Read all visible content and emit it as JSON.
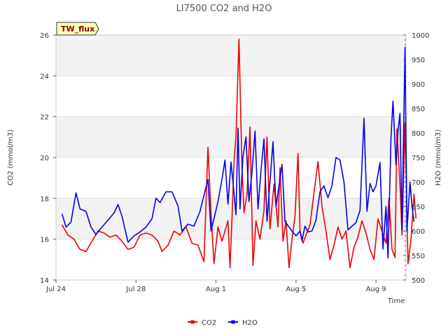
{
  "chart_data": {
    "type": "line",
    "title": "LI7500 CO2 and H2O",
    "site_badge": "TW_flux",
    "xlabel": "Time",
    "ylabel_left": "CO2 (mmol/m3)",
    "ylabel_right": "H2O (mmol/m3)",
    "x_range_days": [
      0,
      17.5
    ],
    "x_ticks": [
      {
        "day": 0,
        "label": "Jul 24"
      },
      {
        "day": 4,
        "label": "Jul 28"
      },
      {
        "day": 8,
        "label": "Aug 1"
      },
      {
        "day": 12,
        "label": "Aug 5"
      },
      {
        "day": 16,
        "label": "Aug 9"
      }
    ],
    "ylim_left": [
      14,
      26
    ],
    "yticks_left": [
      14,
      16,
      18,
      20,
      22,
      24,
      26
    ],
    "ylim_right": [
      500,
      1000
    ],
    "yticks_right": [
      500,
      550,
      600,
      650,
      700,
      750,
      800,
      850,
      900,
      950,
      1000
    ],
    "grid_bands_left": [
      [
        16,
        18
      ],
      [
        20,
        22
      ],
      [
        24,
        26
      ]
    ],
    "series": [
      {
        "name": "CO2",
        "axis": "left",
        "color": "#ee0000",
        "points": [
          [
            0.3,
            16.7
          ],
          [
            0.6,
            16.2
          ],
          [
            0.9,
            16.0
          ],
          [
            1.2,
            15.5
          ],
          [
            1.5,
            15.4
          ],
          [
            1.8,
            15.9
          ],
          [
            2.1,
            16.4
          ],
          [
            2.4,
            16.3
          ],
          [
            2.7,
            16.1
          ],
          [
            3.0,
            16.2
          ],
          [
            3.3,
            15.9
          ],
          [
            3.6,
            15.5
          ],
          [
            3.9,
            15.6
          ],
          [
            4.2,
            16.2
          ],
          [
            4.5,
            16.3
          ],
          [
            4.8,
            16.2
          ],
          [
            5.1,
            15.9
          ],
          [
            5.3,
            15.4
          ],
          [
            5.6,
            15.7
          ],
          [
            5.9,
            16.4
          ],
          [
            6.2,
            16.2
          ],
          [
            6.5,
            16.6
          ],
          [
            6.8,
            15.8
          ],
          [
            7.1,
            15.7
          ],
          [
            7.4,
            14.9
          ],
          [
            7.6,
            20.5
          ],
          [
            7.75,
            17.3
          ],
          [
            7.9,
            14.8
          ],
          [
            8.1,
            16.6
          ],
          [
            8.3,
            15.9
          ],
          [
            8.6,
            16.9
          ],
          [
            8.7,
            14.6
          ],
          [
            8.8,
            17.0
          ],
          [
            8.9,
            19.8
          ],
          [
            9.0,
            21.0
          ],
          [
            9.15,
            25.8
          ],
          [
            9.3,
            19.5
          ],
          [
            9.4,
            17.3
          ],
          [
            9.55,
            18.2
          ],
          [
            9.7,
            21.5
          ],
          [
            9.85,
            14.7
          ],
          [
            10.0,
            16.9
          ],
          [
            10.2,
            16.0
          ],
          [
            10.4,
            17.4
          ],
          [
            10.55,
            21.0
          ],
          [
            10.7,
            16.5
          ],
          [
            10.9,
            18.7
          ],
          [
            11.1,
            16.6
          ],
          [
            11.2,
            19.5
          ],
          [
            11.35,
            15.9
          ],
          [
            11.5,
            16.9
          ],
          [
            11.65,
            14.6
          ],
          [
            11.8,
            16.0
          ],
          [
            11.95,
            17.1
          ],
          [
            12.1,
            20.2
          ],
          [
            12.2,
            16.4
          ],
          [
            12.35,
            15.8
          ],
          [
            12.5,
            16.2
          ],
          [
            12.7,
            16.7
          ],
          [
            12.9,
            18.3
          ],
          [
            13.1,
            19.8
          ],
          [
            13.3,
            17.6
          ],
          [
            13.5,
            16.4
          ],
          [
            13.7,
            15.0
          ],
          [
            13.9,
            15.7
          ],
          [
            14.1,
            16.6
          ],
          [
            14.3,
            16.0
          ],
          [
            14.5,
            16.4
          ],
          [
            14.7,
            14.6
          ],
          [
            14.9,
            15.6
          ],
          [
            15.1,
            16.1
          ],
          [
            15.3,
            16.9
          ],
          [
            15.5,
            16.3
          ],
          [
            15.7,
            15.5
          ],
          [
            15.9,
            15.0
          ],
          [
            16.1,
            17.0
          ],
          [
            16.3,
            16.4
          ],
          [
            16.5,
            15.8
          ],
          [
            16.65,
            18.0
          ],
          [
            16.8,
            15.5
          ],
          [
            16.95,
            15.1
          ],
          [
            17.05,
            21.4
          ],
          [
            17.2,
            18.6
          ],
          [
            17.3,
            16.2
          ],
          [
            17.45,
            21.7
          ],
          [
            17.6,
            14.8
          ],
          [
            17.75,
            16.0
          ],
          [
            17.9,
            18.2
          ],
          [
            18.0,
            17.0
          ]
        ]
      },
      {
        "name": "H2O",
        "axis": "right",
        "color": "#0000ee",
        "points": [
          [
            0.3,
            635
          ],
          [
            0.5,
            608
          ],
          [
            0.75,
            618
          ],
          [
            1.0,
            678
          ],
          [
            1.2,
            645
          ],
          [
            1.5,
            640
          ],
          [
            1.75,
            608
          ],
          [
            2.0,
            593
          ],
          [
            2.3,
            608
          ],
          [
            2.6,
            622
          ],
          [
            2.9,
            637
          ],
          [
            3.1,
            654
          ],
          [
            3.3,
            630
          ],
          [
            3.6,
            577
          ],
          [
            3.9,
            590
          ],
          [
            4.2,
            598
          ],
          [
            4.5,
            608
          ],
          [
            4.8,
            625
          ],
          [
            5.0,
            667
          ],
          [
            5.2,
            658
          ],
          [
            5.5,
            680
          ],
          [
            5.8,
            680
          ],
          [
            6.1,
            651
          ],
          [
            6.3,
            600
          ],
          [
            6.6,
            614
          ],
          [
            6.9,
            610
          ],
          [
            7.2,
            640
          ],
          [
            7.4,
            673
          ],
          [
            7.6,
            705
          ],
          [
            7.75,
            600
          ],
          [
            7.9,
            625
          ],
          [
            8.1,
            660
          ],
          [
            8.3,
            705
          ],
          [
            8.45,
            745
          ],
          [
            8.6,
            655
          ],
          [
            8.75,
            741
          ],
          [
            8.9,
            678
          ],
          [
            9.0,
            633
          ],
          [
            9.1,
            810
          ],
          [
            9.2,
            645
          ],
          [
            9.35,
            752
          ],
          [
            9.5,
            792
          ],
          [
            9.65,
            660
          ],
          [
            9.8,
            720
          ],
          [
            9.95,
            804
          ],
          [
            10.1,
            645
          ],
          [
            10.25,
            725
          ],
          [
            10.4,
            788
          ],
          [
            10.55,
            620
          ],
          [
            10.7,
            701
          ],
          [
            10.85,
            782
          ],
          [
            11.0,
            650
          ],
          [
            11.15,
            692
          ],
          [
            11.3,
            736
          ],
          [
            11.45,
            620
          ],
          [
            11.6,
            611
          ],
          [
            11.8,
            600
          ],
          [
            12.0,
            590
          ],
          [
            12.2,
            600
          ],
          [
            12.3,
            580
          ],
          [
            12.45,
            610
          ],
          [
            12.6,
            598
          ],
          [
            12.8,
            600
          ],
          [
            13.0,
            622
          ],
          [
            13.2,
            680
          ],
          [
            13.4,
            692
          ],
          [
            13.6,
            668
          ],
          [
            13.8,
            693
          ],
          [
            14.0,
            750
          ],
          [
            14.2,
            745
          ],
          [
            14.4,
            700
          ],
          [
            14.6,
            602
          ],
          [
            14.8,
            610
          ],
          [
            15.0,
            617
          ],
          [
            15.2,
            642
          ],
          [
            15.4,
            830
          ],
          [
            15.55,
            640
          ],
          [
            15.7,
            697
          ],
          [
            15.85,
            680
          ],
          [
            16.0,
            692
          ],
          [
            16.2,
            740
          ],
          [
            16.35,
            563
          ],
          [
            16.5,
            650
          ],
          [
            16.6,
            545
          ],
          [
            16.75,
            792
          ],
          [
            16.85,
            865
          ],
          [
            17.0,
            735
          ],
          [
            17.1,
            805
          ],
          [
            17.2,
            840
          ],
          [
            17.3,
            602
          ],
          [
            17.45,
            975
          ],
          [
            17.55,
            600
          ],
          [
            17.7,
            700
          ],
          [
            17.8,
            650
          ],
          [
            17.9,
            619
          ]
        ]
      }
    ],
    "legend": {
      "position": "bottom-center",
      "entries": [
        "CO2",
        "H2O"
      ]
    }
  }
}
